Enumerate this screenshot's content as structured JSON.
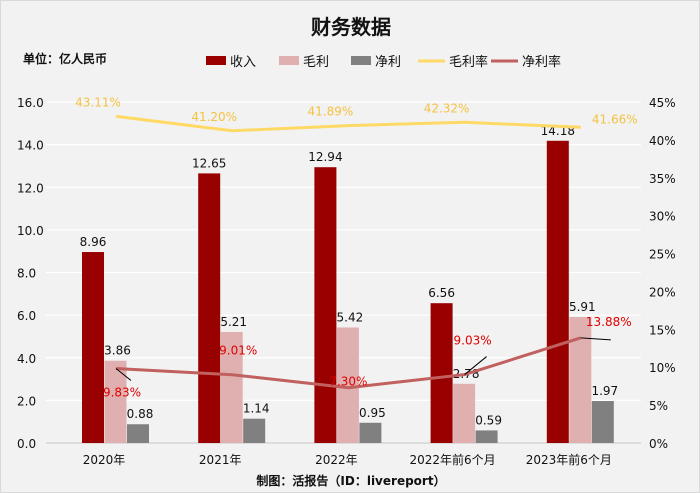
{
  "chart_data": {
    "type": "bar",
    "title": "财务数据",
    "unit_label": "单位：亿人民币",
    "source": "制图：活报告（ID：livereport）",
    "categories": [
      "2020年",
      "2021年",
      "2022年",
      "2022年前6个月",
      "2023年前6个月"
    ],
    "series": [
      {
        "name": "收入",
        "type": "bar",
        "axis": "left",
        "color": "#990000",
        "values": [
          8.96,
          12.65,
          12.94,
          6.56,
          14.18
        ]
      },
      {
        "name": "毛利",
        "type": "bar",
        "axis": "left",
        "color": "#e0b0b0",
        "values": [
          3.86,
          5.21,
          5.42,
          2.78,
          5.91
        ]
      },
      {
        "name": "净利",
        "type": "bar",
        "axis": "left",
        "color": "#808080",
        "values": [
          0.88,
          1.14,
          0.95,
          0.59,
          1.97
        ]
      },
      {
        "name": "毛利率",
        "type": "line",
        "axis": "right",
        "color": "#ffd966",
        "label_color": "#f5c242",
        "values": [
          43.11,
          41.2,
          41.89,
          42.32,
          41.66
        ],
        "labels": [
          "43.11%",
          "41.20%",
          "41.89%",
          "42.32%",
          "41.66%"
        ]
      },
      {
        "name": "净利率",
        "type": "line",
        "axis": "right",
        "color": "#c0605f",
        "label_color": "#e00000",
        "values": [
          9.83,
          9.01,
          7.3,
          9.03,
          13.88
        ],
        "labels": [
          "9.83%",
          "9.01%",
          "7.30%",
          "9.03%",
          "13.88%"
        ]
      }
    ],
    "left_axis": {
      "ylim": [
        0,
        16
      ],
      "ticks": [
        "0.0",
        "2.0",
        "4.0",
        "6.0",
        "8.0",
        "10.0",
        "12.0",
        "14.0",
        "16.0"
      ]
    },
    "right_axis": {
      "ylim": [
        0,
        45
      ],
      "ticks": [
        "0%",
        "5%",
        "10%",
        "15%",
        "20%",
        "25%",
        "30%",
        "35%",
        "40%",
        "45%"
      ]
    },
    "grid": true,
    "legend": "top"
  }
}
